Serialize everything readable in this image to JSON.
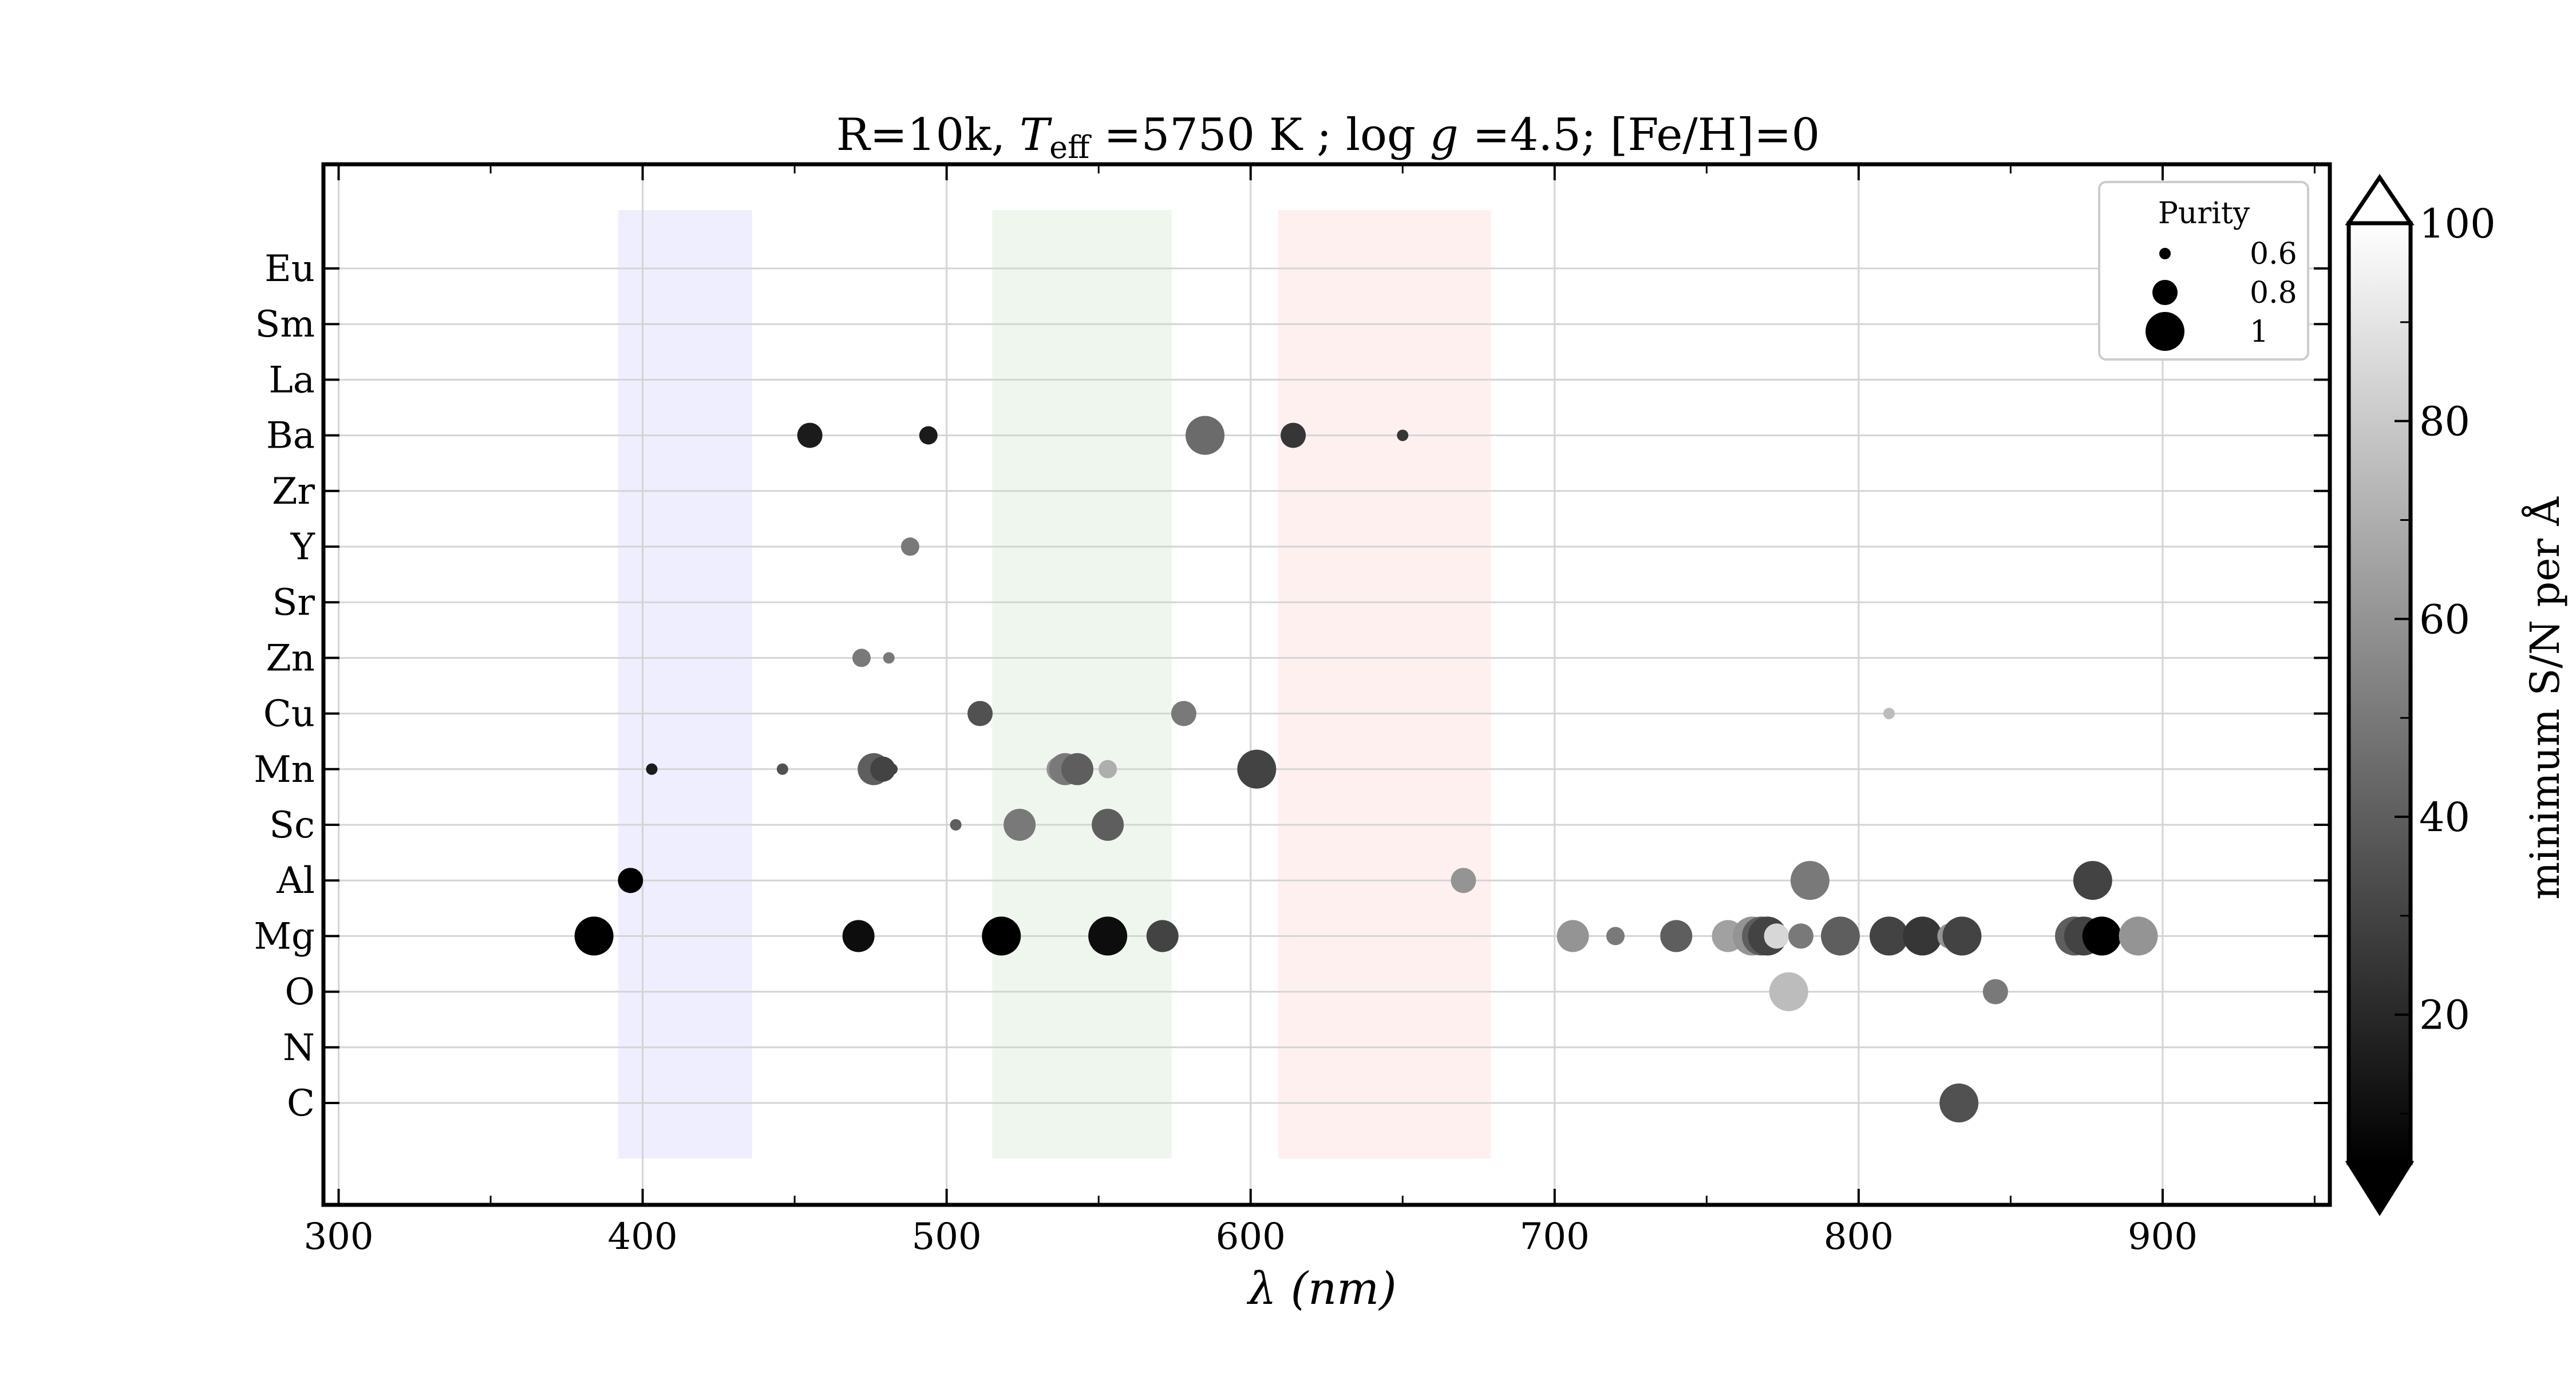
{
  "chart_data": {
    "type": "scatter",
    "title": "R=10k, T_eff =5750 K ; log g =4.5; [Fe/H]=0",
    "title_parts": [
      "R=10k, ",
      "T",
      "eff",
      " =5750 K ; log ",
      "g",
      " =4.5; [Fe/H]=0"
    ],
    "xlabel": "λ (nm)",
    "xlim": [
      295,
      955
    ],
    "x_ticks": [
      300,
      400,
      500,
      600,
      700,
      800,
      900
    ],
    "x_tick_labels": [
      "300",
      "400",
      "500",
      "600",
      "700",
      "800",
      "900"
    ],
    "y_categories": [
      "C",
      "N",
      "O",
      "Mg",
      "Al",
      "Sc",
      "Mn",
      "Cu",
      "Zn",
      "Sr",
      "Y",
      "Zr",
      "Ba",
      "La",
      "Sm",
      "Eu"
    ],
    "grid": true,
    "bands": [
      {
        "x": [
          392,
          436
        ],
        "color": "#eeeeff"
      },
      {
        "x": [
          515,
          574
        ],
        "color": "#eef6ee"
      },
      {
        "x": [
          609,
          679
        ],
        "color": "#fff0f0"
      }
    ],
    "colorbar": {
      "label": "minimum S/N per Å",
      "ticks": [
        20,
        40,
        60,
        80,
        100
      ],
      "tick_labels": [
        "20",
        "40",
        "60",
        "80",
        "100"
      ],
      "range": [
        5,
        100
      ],
      "cmap": "gray",
      "extend": "both"
    },
    "legend": {
      "title": "Purity",
      "entries": [
        {
          "label": "0.6",
          "purity": 0.6
        },
        {
          "label": "0.8",
          "purity": 0.8
        },
        {
          "label": "1",
          "purity": 1.0
        }
      ],
      "position": "upper right"
    },
    "points": [
      {
        "element": "Ba",
        "x": 455,
        "purity": 0.8,
        "sn": 15
      },
      {
        "element": "Ba",
        "x": 494,
        "purity": 0.7,
        "sn": 15
      },
      {
        "element": "Ba",
        "x": 585,
        "purity": 1.0,
        "sn": 45
      },
      {
        "element": "Ba",
        "x": 614,
        "purity": 0.8,
        "sn": 25
      },
      {
        "element": "Ba",
        "x": 650,
        "purity": 0.6,
        "sn": 25
      },
      {
        "element": "Y",
        "x": 488,
        "purity": 0.7,
        "sn": 50
      },
      {
        "element": "Zn",
        "x": 472,
        "purity": 0.7,
        "sn": 50
      },
      {
        "element": "Zn",
        "x": 481,
        "purity": 0.6,
        "sn": 50
      },
      {
        "element": "Cu",
        "x": 511,
        "purity": 0.8,
        "sn": 35
      },
      {
        "element": "Cu",
        "x": 578,
        "purity": 0.8,
        "sn": 50
      },
      {
        "element": "Cu",
        "x": 810,
        "purity": 0.6,
        "sn": 75
      },
      {
        "element": "Mn",
        "x": 403,
        "purity": 0.6,
        "sn": 15
      },
      {
        "element": "Mn",
        "x": 446,
        "purity": 0.6,
        "sn": 35
      },
      {
        "element": "Mn",
        "x": 476,
        "purity": 0.9,
        "sn": 40
      },
      {
        "element": "Mn",
        "x": 479,
        "purity": 0.8,
        "sn": 30
      },
      {
        "element": "Mn",
        "x": 482,
        "purity": 0.6,
        "sn": 30
      },
      {
        "element": "Mn",
        "x": 537,
        "purity": 0.8,
        "sn": 60
      },
      {
        "element": "Mn",
        "x": 539,
        "purity": 0.9,
        "sn": 50
      },
      {
        "element": "Mn",
        "x": 543,
        "purity": 0.9,
        "sn": 40
      },
      {
        "element": "Mn",
        "x": 553,
        "purity": 0.7,
        "sn": 70
      },
      {
        "element": "Mn",
        "x": 602,
        "purity": 1.0,
        "sn": 30
      },
      {
        "element": "Sc",
        "x": 503,
        "purity": 0.6,
        "sn": 40
      },
      {
        "element": "Sc",
        "x": 524,
        "purity": 0.9,
        "sn": 50
      },
      {
        "element": "Sc",
        "x": 553,
        "purity": 0.9,
        "sn": 40
      },
      {
        "element": "Al",
        "x": 396,
        "purity": 0.8,
        "sn": 5
      },
      {
        "element": "Al",
        "x": 670,
        "purity": 0.8,
        "sn": 60
      },
      {
        "element": "Al",
        "x": 784,
        "purity": 1.0,
        "sn": 50
      },
      {
        "element": "Al",
        "x": 877,
        "purity": 1.0,
        "sn": 30
      },
      {
        "element": "Mg",
        "x": 384,
        "purity": 1.0,
        "sn": 5
      },
      {
        "element": "Mg",
        "x": 471,
        "purity": 0.9,
        "sn": 10
      },
      {
        "element": "Mg",
        "x": 518,
        "purity": 1.0,
        "sn": 5
      },
      {
        "element": "Mg",
        "x": 553,
        "purity": 1.0,
        "sn": 10
      },
      {
        "element": "Mg",
        "x": 571,
        "purity": 0.9,
        "sn": 30
      },
      {
        "element": "Mg",
        "x": 706,
        "purity": 0.9,
        "sn": 60
      },
      {
        "element": "Mg",
        "x": 720,
        "purity": 0.7,
        "sn": 50
      },
      {
        "element": "Mg",
        "x": 740,
        "purity": 0.9,
        "sn": 40
      },
      {
        "element": "Mg",
        "x": 757,
        "purity": 0.9,
        "sn": 65
      },
      {
        "element": "Mg",
        "x": 765,
        "purity": 1.0,
        "sn": 60
      },
      {
        "element": "Mg",
        "x": 768,
        "purity": 1.0,
        "sn": 40
      },
      {
        "element": "Mg",
        "x": 770,
        "purity": 1.0,
        "sn": 30
      },
      {
        "element": "Mg",
        "x": 773,
        "purity": 0.8,
        "sn": 85
      },
      {
        "element": "Mg",
        "x": 781,
        "purity": 0.8,
        "sn": 50
      },
      {
        "element": "Mg",
        "x": 794,
        "purity": 1.0,
        "sn": 40
      },
      {
        "element": "Mg",
        "x": 810,
        "purity": 1.0,
        "sn": 30
      },
      {
        "element": "Mg",
        "x": 821,
        "purity": 1.0,
        "sn": 25
      },
      {
        "element": "Mg",
        "x": 830,
        "purity": 0.8,
        "sn": 60
      },
      {
        "element": "Mg",
        "x": 834,
        "purity": 1.0,
        "sn": 30
      },
      {
        "element": "Mg",
        "x": 871,
        "purity": 1.0,
        "sn": 40
      },
      {
        "element": "Mg",
        "x": 874,
        "purity": 1.0,
        "sn": 30
      },
      {
        "element": "Mg",
        "x": 880,
        "purity": 1.0,
        "sn": 5
      },
      {
        "element": "Mg",
        "x": 892,
        "purity": 1.0,
        "sn": 60
      },
      {
        "element": "O",
        "x": 777,
        "purity": 1.0,
        "sn": 75
      },
      {
        "element": "O",
        "x": 845,
        "purity": 0.8,
        "sn": 50
      },
      {
        "element": "C",
        "x": 833,
        "purity": 1.0,
        "sn": 35
      }
    ]
  }
}
